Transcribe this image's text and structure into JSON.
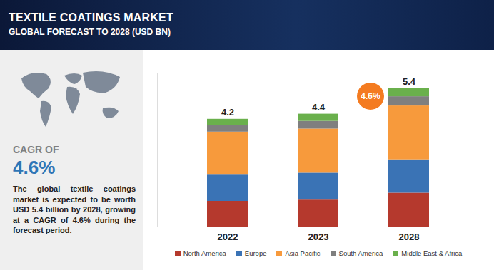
{
  "chart_data": {
    "type": "bar",
    "title": "TEXTILE COATINGS MARKET",
    "subtitle": "GLOBAL FORECAST TO 2028 (USD BN)",
    "stacked": true,
    "categories": [
      "2022",
      "2023",
      "2028"
    ],
    "series": [
      {
        "name": "North America",
        "color": "#b5392d",
        "values": [
          1.0,
          1.05,
          1.32
        ]
      },
      {
        "name": "Europe",
        "color": "#3a73b5",
        "values": [
          1.05,
          1.05,
          1.3
        ]
      },
      {
        "name": "Asia Pacific",
        "color": "#f79a3c",
        "values": [
          1.65,
          1.72,
          2.1
        ]
      },
      {
        "name": "South America",
        "color": "#7f7f7f",
        "values": [
          0.25,
          0.3,
          0.36
        ]
      },
      {
        "name": "Middle East & Africa",
        "color": "#6ab04c",
        "values": [
          0.25,
          0.28,
          0.32
        ]
      }
    ],
    "totals": [
      4.2,
      4.4,
      5.4
    ],
    "ylim": [
      0,
      6
    ],
    "yticks": [],
    "tick_labels": "x",
    "grid": false,
    "legend": "bottom",
    "annotations": [
      {
        "text": "4.6%",
        "value": 4.6
      }
    ],
    "side_panel": {
      "heading": "CAGR OF",
      "value": 4.6,
      "value_label": "4.6%",
      "text": "The global textile coatings market is expected to be worth USD 5.4 billion by 2028, growing at a CAGR of 4.6% during the forecast period."
    }
  }
}
